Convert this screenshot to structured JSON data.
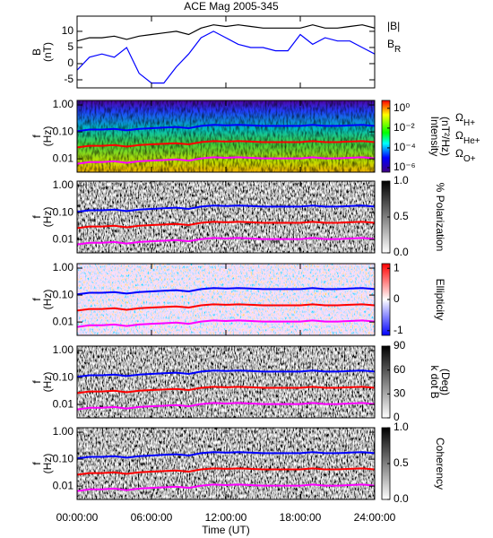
{
  "chart_data": [
    {
      "type": "line",
      "title": "ACE Mag 2005-345",
      "ylabel": [
        "B",
        "(nT)"
      ],
      "x": [
        0,
        1,
        2,
        3,
        4,
        5,
        6,
        7,
        8,
        9,
        10,
        11,
        12,
        13,
        14,
        15,
        16,
        17,
        18,
        19,
        20,
        21,
        22,
        23,
        24
      ],
      "xlim": [
        0,
        24
      ],
      "ylim": [
        -7.5,
        14.7
      ],
      "yticks": [
        -5,
        0,
        5,
        10
      ],
      "series": [
        {
          "name": "|B|",
          "color": "#000000",
          "values": [
            7,
            8,
            8,
            8.5,
            7.5,
            8.5,
            9,
            9.5,
            10,
            9,
            11,
            12,
            11.5,
            12,
            11.5,
            11,
            11,
            11,
            11,
            12,
            11,
            11,
            11.5,
            12,
            11
          ]
        },
        {
          "name": "B",
          "name_sub": "R",
          "color": "#0000ff",
          "values": [
            -2,
            2,
            3,
            2,
            5,
            -3,
            -6,
            -6,
            -1,
            3,
            8,
            10,
            8,
            6,
            5,
            5,
            4,
            4,
            9,
            6,
            8,
            7,
            7,
            5,
            3
          ]
        }
      ]
    },
    {
      "type": "spectrogram",
      "ylabel": [
        "f",
        "(Hz)"
      ],
      "ylog": true,
      "ylim": [
        0.0032,
        1.47
      ],
      "yticks": [
        {
          "value": 1,
          "label": "1.00"
        },
        {
          "value": 0.1,
          "label": "0.10"
        },
        {
          "value": 0.01,
          "label": "0.01"
        }
      ],
      "xlim": [
        0,
        24
      ],
      "colormap": "rainbow",
      "zlabel": [
        "Intensity",
        "(nT²/Hz)"
      ],
      "zlog": true,
      "zlim": [
        3.5e-07,
        6.3
      ],
      "zticks": [
        {
          "value": 1,
          "label": "10⁰"
        },
        {
          "value": 0.01,
          "label": "10⁻²"
        },
        {
          "value": 0.0001,
          "label": "10⁻⁴"
        },
        {
          "value": 1e-06,
          "label": "10⁻⁶"
        }
      ],
      "x": [
        0,
        1,
        2,
        3,
        4,
        5,
        6,
        7,
        8,
        9,
        10,
        11,
        12,
        13,
        14,
        15,
        16,
        17,
        18,
        19,
        20,
        21,
        22,
        23,
        24
      ],
      "series": [
        {
          "name": "Ω",
          "name_sub": "H+",
          "color": "#0000ff",
          "values": [
            0.106,
            0.122,
            0.122,
            0.129,
            0.114,
            0.129,
            0.137,
            0.144,
            0.152,
            0.137,
            0.167,
            0.182,
            0.175,
            0.182,
            0.175,
            0.167,
            0.167,
            0.167,
            0.167,
            0.182,
            0.167,
            0.167,
            0.175,
            0.182,
            0.167
          ]
        },
        {
          "name": "Ω",
          "name_sub": "He+",
          "color": "#ff0000",
          "values": [
            0.0265,
            0.0305,
            0.0305,
            0.0323,
            0.0285,
            0.0323,
            0.0343,
            0.036,
            0.038,
            0.0343,
            0.0418,
            0.0455,
            0.0438,
            0.0455,
            0.0438,
            0.0418,
            0.0418,
            0.0418,
            0.0418,
            0.0455,
            0.0418,
            0.0418,
            0.0438,
            0.0455,
            0.0418
          ]
        },
        {
          "name": "Ω",
          "name_sub": "O+",
          "color": "#ff00ff",
          "values": [
            0.0066,
            0.0076,
            0.0076,
            0.0081,
            0.0071,
            0.0081,
            0.0086,
            0.009,
            0.0095,
            0.0086,
            0.0104,
            0.0114,
            0.0109,
            0.0114,
            0.0109,
            0.0104,
            0.0104,
            0.0104,
            0.0104,
            0.0114,
            0.0104,
            0.0104,
            0.0109,
            0.0114,
            0.0104
          ]
        }
      ]
    },
    {
      "type": "spectrogram",
      "ylabel": [
        "f",
        "(Hz)"
      ],
      "ylog": true,
      "ylim": [
        0.0032,
        1.47
      ],
      "yticks": [
        {
          "value": 1,
          "label": "1.00"
        },
        {
          "value": 0.1,
          "label": "0.10"
        },
        {
          "value": 0.01,
          "label": "0.01"
        }
      ],
      "xlim": [
        0,
        24
      ],
      "colormap": "gray",
      "zlabel": [
        "% Polarization"
      ],
      "zlim": [
        0,
        1
      ],
      "zticks": [
        {
          "value": 0,
          "label": "0.0"
        },
        {
          "value": 0.5,
          "label": "0.5"
        },
        {
          "value": 1,
          "label": "1.0"
        }
      ]
    },
    {
      "type": "spectrogram",
      "ylabel": [
        "f",
        "(Hz)"
      ],
      "ylog": true,
      "ylim": [
        0.0032,
        1.47
      ],
      "yticks": [
        {
          "value": 1,
          "label": "1.00"
        },
        {
          "value": 0.1,
          "label": "0.10"
        },
        {
          "value": 0.01,
          "label": "0.01"
        }
      ],
      "xlim": [
        0,
        24
      ],
      "colormap": "bwr",
      "zlabel": [
        "Ellipticity"
      ],
      "zlim": [
        -1.15,
        1.15
      ],
      "zticks": [
        -1,
        0,
        1
      ]
    },
    {
      "type": "spectrogram",
      "ylabel": [
        "f",
        "(Hz)"
      ],
      "ylog": true,
      "ylim": [
        0.0032,
        1.47
      ],
      "yticks": [
        {
          "value": 1,
          "label": "1.00"
        },
        {
          "value": 0.1,
          "label": "0.10"
        },
        {
          "value": 0.01,
          "label": "0.01"
        }
      ],
      "xlim": [
        0,
        24
      ],
      "colormap": "gray",
      "zlabel": [
        "k dot B",
        "(Deg)"
      ],
      "zlim": [
        0,
        90
      ],
      "zticks": [
        0,
        30,
        60,
        90
      ]
    },
    {
      "type": "spectrogram",
      "ylabel": [
        "f",
        "(Hz)"
      ],
      "ylog": true,
      "ylim": [
        0.0032,
        1.47
      ],
      "yticks": [
        {
          "value": 1,
          "label": "1.00"
        },
        {
          "value": 0.1,
          "label": "0.10"
        },
        {
          "value": 0.01,
          "label": "0.01"
        }
      ],
      "xlim": [
        0,
        24
      ],
      "colormap": "gray",
      "zlabel": [
        "Coherency"
      ],
      "zlim": [
        0,
        1
      ],
      "zticks": [
        {
          "value": 0,
          "label": "0.0"
        },
        {
          "value": 0.5,
          "label": "0.5"
        },
        {
          "value": 1,
          "label": "1.0"
        }
      ],
      "xticks": [
        {
          "value": 0,
          "label": "00:00:00"
        },
        {
          "value": 6,
          "label": "06:00:00"
        },
        {
          "value": 12,
          "label": "12:00:00"
        },
        {
          "value": 18,
          "label": "18:00:00"
        },
        {
          "value": 24,
          "label": "24:00:00"
        }
      ],
      "xlabel": "Time (UT)"
    }
  ]
}
